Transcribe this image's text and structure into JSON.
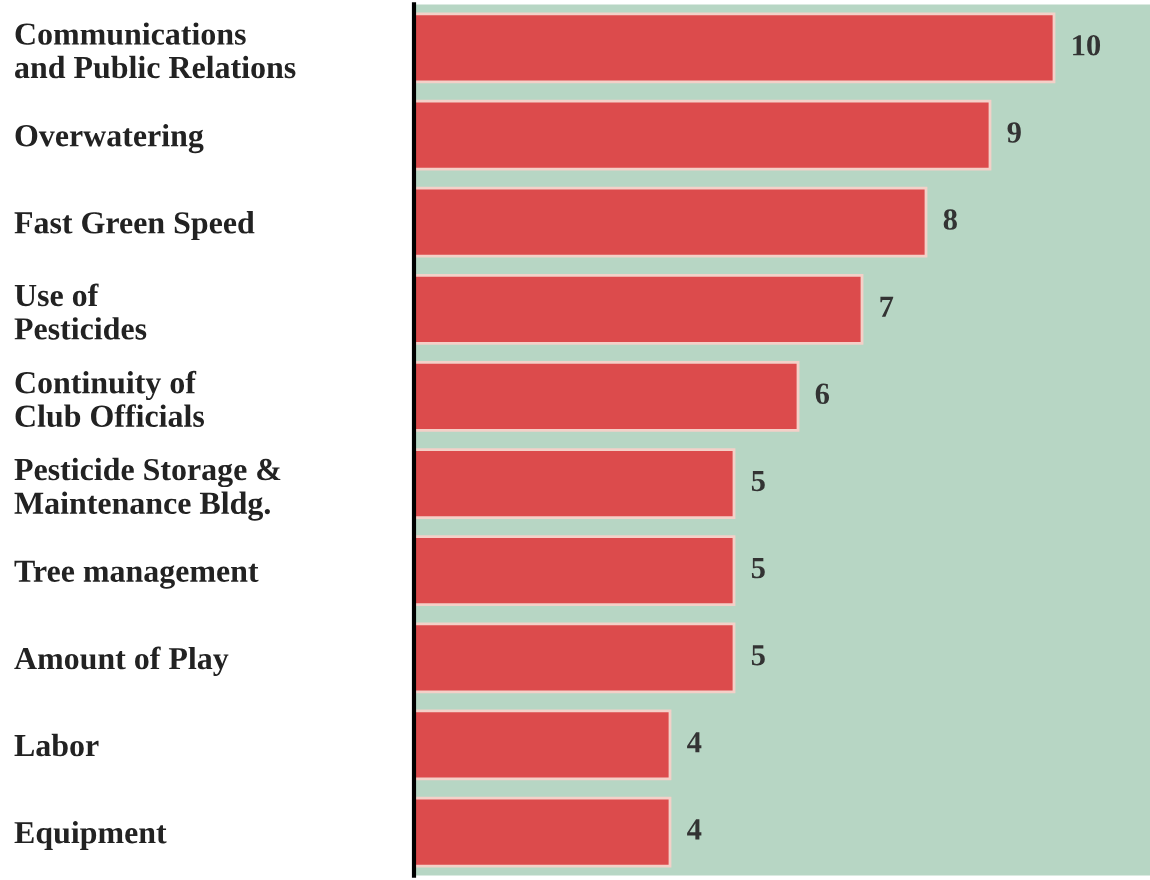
{
  "chart_data": {
    "type": "bar",
    "orientation": "horizontal",
    "categories": [
      "Communications\nand Public Relations",
      "Overwatering",
      "Fast Green Speed",
      "Use of\nPesticides",
      "Continuity of\nClub Officials",
      "Pesticide Storage &\nMaintenance Bldg.",
      "Tree management",
      "Amount of Play",
      "Labor",
      "Equipment"
    ],
    "values": [
      10,
      9,
      8,
      7,
      6,
      5,
      5,
      5,
      4,
      4
    ],
    "color": "#dc4b4c",
    "data_labels": true,
    "grid": false,
    "legend": false
  }
}
